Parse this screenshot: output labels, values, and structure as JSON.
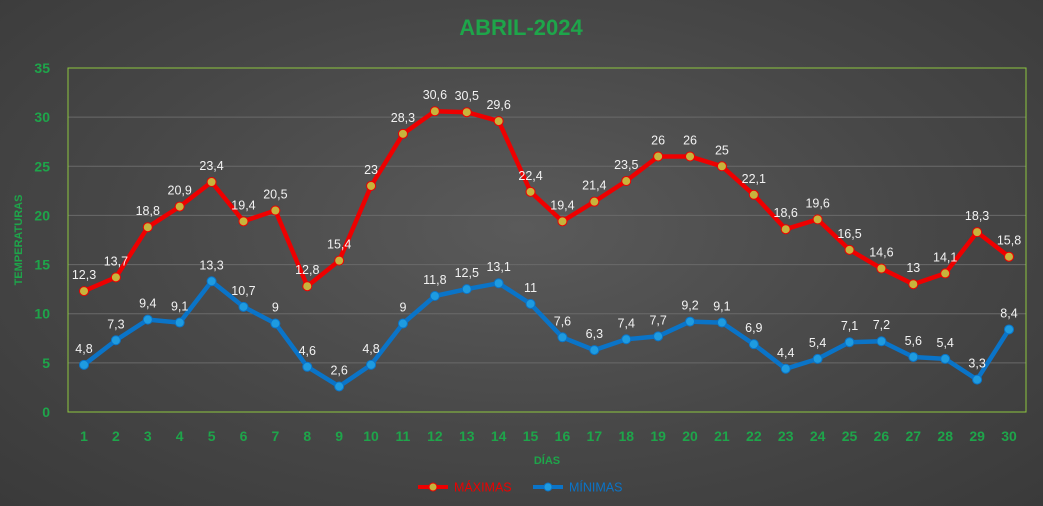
{
  "chart_data": {
    "type": "line",
    "title": "ABRIL-2024",
    "xlabel": "DÍAS",
    "ylabel": "TEMPERATURAS",
    "categories": [
      "1",
      "2",
      "3",
      "4",
      "5",
      "6",
      "7",
      "8",
      "9",
      "10",
      "11",
      "12",
      "13",
      "14",
      "15",
      "16",
      "17",
      "18",
      "19",
      "20",
      "21",
      "22",
      "23",
      "24",
      "25",
      "26",
      "27",
      "28",
      "29",
      "30"
    ],
    "ylim": [
      0,
      35
    ],
    "yticks": [
      0,
      5,
      10,
      15,
      20,
      25,
      30,
      35
    ],
    "grid": true,
    "legend_position": "bottom",
    "series": [
      {
        "name": "MÁXIMAS",
        "color": "#ee0000",
        "marker_color": "#c8b43c",
        "label_position": "above",
        "values": [
          12.3,
          13.7,
          18.8,
          20.9,
          23.4,
          19.4,
          20.5,
          12.8,
          15.4,
          23,
          28.3,
          30.6,
          30.5,
          29.6,
          22.4,
          19.4,
          21.4,
          23.5,
          26,
          26,
          25,
          22.1,
          18.6,
          19.6,
          16.5,
          14.6,
          13,
          14.1,
          18.3,
          15.8
        ],
        "labels": [
          "12,3",
          "13,7",
          "18,8",
          "20,9",
          "23,4",
          "19,4",
          "20,5",
          "12,8",
          "15,4",
          "23",
          "28,3",
          "30,6",
          "30,5",
          "29,6",
          "22,4",
          "19,4",
          "21,4",
          "23,5",
          "26",
          "26",
          "25",
          "22,1",
          "18,6",
          "19,6",
          "16,5",
          "14,6",
          "13",
          "14,1",
          "18,3",
          "15,8"
        ]
      },
      {
        "name": "MÍNIMAS",
        "color": "#0a74c8",
        "marker_color": "#1e9be0",
        "label_position": "above",
        "values": [
          4.8,
          7.3,
          9.4,
          9.1,
          13.3,
          10.7,
          9,
          4.6,
          2.6,
          4.8,
          9,
          11.8,
          12.5,
          13.1,
          11,
          7.6,
          6.3,
          7.4,
          7.7,
          9.2,
          9.1,
          6.9,
          4.4,
          5.4,
          7.1,
          7.2,
          5.6,
          5.4,
          3.3,
          8.4
        ],
        "labels": [
          "4,8",
          "7,3",
          "9,4",
          "9,1",
          "13,3",
          "10,7",
          "9",
          "4,6",
          "2,6",
          "4,8",
          "9",
          "11,8",
          "12,5",
          "13,1",
          "11",
          "7,6",
          "6,3",
          "7,4",
          "7,7",
          "9,2",
          "9,1",
          "6,9",
          "4,4",
          "5,4",
          "7,1",
          "7,2",
          "5,6",
          "5,4",
          "3,3",
          "8,4"
        ]
      }
    ],
    "colors": {
      "title": "#1ea54a",
      "axis_text": "#1ea54a",
      "plot_border": "#8dc63f",
      "gridline": "#6a6a6a",
      "data_label": "#f2f2f2"
    }
  }
}
